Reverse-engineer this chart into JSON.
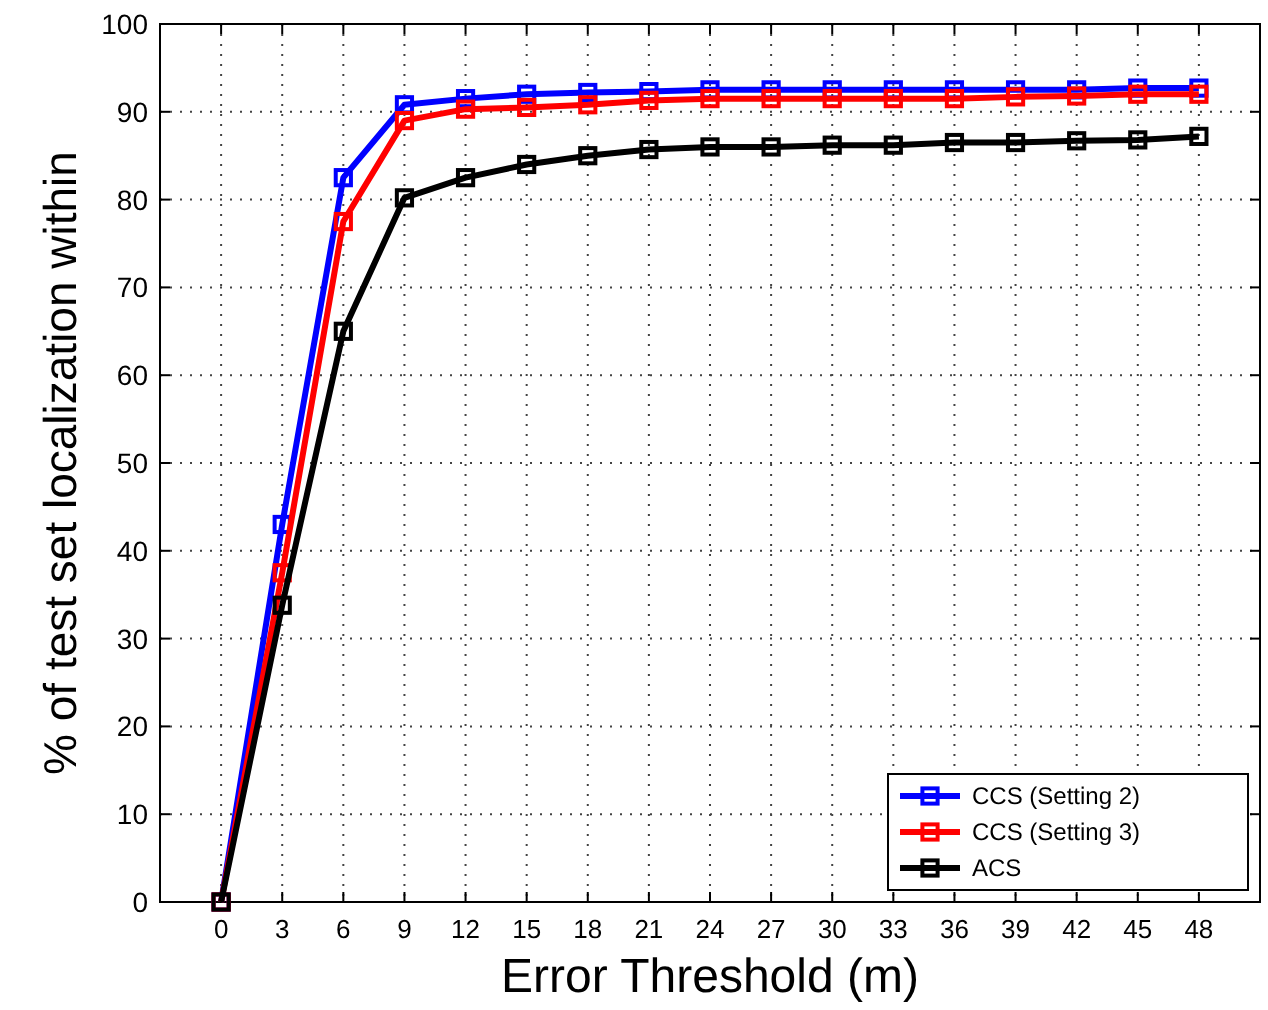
{
  "chart_data": {
    "type": "line",
    "xlabel": "Error Threshold (m)",
    "ylabel": "% of test set localization within",
    "x": [
      0,
      3,
      6,
      9,
      12,
      15,
      18,
      21,
      24,
      27,
      30,
      33,
      36,
      39,
      42,
      45,
      48
    ],
    "series": [
      {
        "name": "CCS (Setting 2)",
        "color": "#0000ff",
        "values": [
          0,
          43,
          82.5,
          90.8,
          91.5,
          92,
          92.2,
          92.3,
          92.5,
          92.5,
          92.5,
          92.5,
          92.5,
          92.5,
          92.5,
          92.7,
          92.7
        ]
      },
      {
        "name": "CCS (Setting 3)",
        "color": "#ff0000",
        "values": [
          0,
          37.5,
          77.5,
          89,
          90.3,
          90.5,
          90.8,
          91.3,
          91.5,
          91.5,
          91.5,
          91.5,
          91.5,
          91.7,
          91.8,
          92,
          92
        ]
      },
      {
        "name": "ACS",
        "color": "#000000",
        "values": [
          0,
          33.8,
          65,
          80.2,
          82.5,
          84,
          85,
          85.7,
          86,
          86,
          86.2,
          86.2,
          86.5,
          86.5,
          86.7,
          86.8,
          87.2
        ]
      }
    ],
    "xlim": [
      -3,
      51
    ],
    "xticks": [
      0,
      3,
      6,
      9,
      12,
      15,
      18,
      21,
      24,
      27,
      30,
      33,
      36,
      39,
      42,
      45,
      48
    ],
    "ylim": [
      0,
      100
    ],
    "yticks": [
      0,
      10,
      20,
      30,
      40,
      50,
      60,
      70,
      80,
      90,
      100
    ],
    "grid": true,
    "legend": "bottom right",
    "marker": "square",
    "line_style": "solid"
  }
}
